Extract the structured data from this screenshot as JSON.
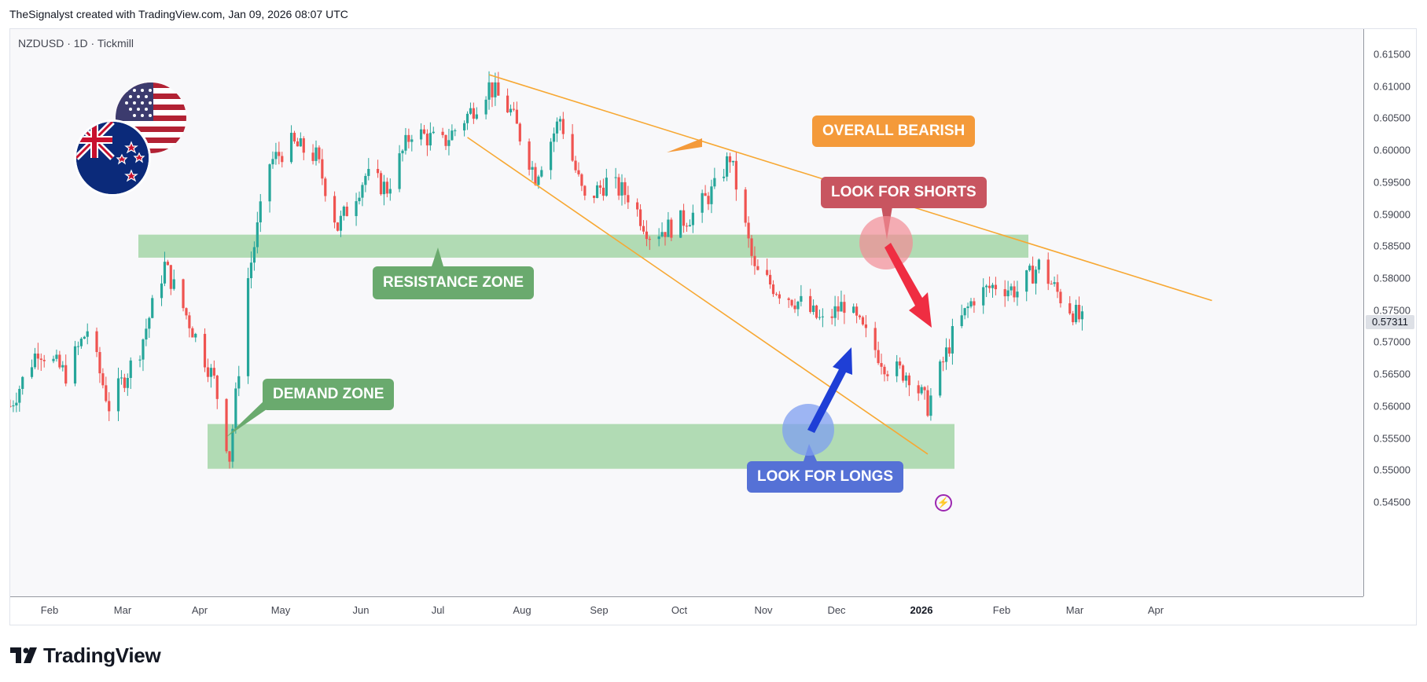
{
  "header": {
    "caption": "TheSignalyst created with TradingView.com, Jan 09, 2026 08:07 UTC"
  },
  "chart": {
    "symbol_info": "NZDUSD · 1D · Tickmill"
  },
  "y_axis": {
    "ticks": [
      "0.61500",
      "0.61000",
      "0.60500",
      "0.60000",
      "0.59500",
      "0.59000",
      "0.58500",
      "0.58000",
      "0.57500",
      "0.57000",
      "0.56500",
      "0.56000",
      "0.55500",
      "0.55000",
      "0.54500"
    ],
    "current_price": "0.57311"
  },
  "x_axis": {
    "ticks": [
      "Feb",
      "Mar",
      "Apr",
      "May",
      "Jun",
      "Jul",
      "Aug",
      "Sep",
      "Oct",
      "Nov",
      "Dec",
      "2026",
      "Feb",
      "Mar",
      "Apr"
    ]
  },
  "annotations": {
    "overall_bearish": "OVERALL BEARISH",
    "look_for_shorts": "LOOK FOR SHORTS",
    "resistance_zone": "RESISTANCE ZONE",
    "demand_zone": "DEMAND ZONE",
    "look_for_longs": "LOOK FOR LONGS"
  },
  "footer": {
    "brand": "TradingView"
  },
  "flags": [
    "united-states-flag",
    "new-zealand-flag"
  ],
  "colors": {
    "up": "#26a69a",
    "down": "#ef5350",
    "resistance": "#a5d6a7",
    "trendline": "#f7a833",
    "bearish_box": "#f49a3a",
    "shorts_box": "#c85560",
    "zone_label": "#6aaa6e",
    "longs_box": "#5571d6"
  },
  "chart_data": {
    "type": "candlestick",
    "title": "NZDUSD · 1D · Tickmill",
    "x_range": [
      "2025-01-27",
      "2026-04-10"
    ],
    "ylim": [
      0.542,
      0.618
    ],
    "key_levels": [
      {
        "name": "RESISTANCE ZONE",
        "from": 0.5832,
        "to": 0.5868
      },
      {
        "name": "DEMAND ZONE",
        "from": 0.5502,
        "to": 0.5572
      }
    ],
    "trendlines": [
      {
        "from": [
          "2025-07-01",
          0.6118
        ],
        "to": [
          "2026-02-20",
          0.5765
        ]
      },
      {
        "from": [
          "2025-06-24",
          0.602
        ],
        "to": [
          "2025-11-20",
          0.5525
        ]
      }
    ],
    "series": [
      {
        "points": [
          [
            "2025-01-27",
            0.56
          ],
          [
            "2025-02-05",
            0.569
          ],
          [
            "2025-02-14",
            0.565
          ],
          [
            "2025-02-21",
            0.572
          ],
          [
            "2025-02-28",
            0.56
          ],
          [
            "2025-03-10",
            0.569
          ],
          [
            "2025-03-18",
            0.582
          ],
          [
            "2025-03-27",
            0.572
          ],
          [
            "2025-04-03",
            0.564
          ],
          [
            "2025-04-08",
            0.552
          ],
          [
            "2025-04-14",
            0.58
          ],
          [
            "2025-04-21",
            0.598
          ],
          [
            "2025-04-28",
            0.601
          ],
          [
            "2025-05-06",
            0.599
          ],
          [
            "2025-05-13",
            0.588
          ],
          [
            "2025-05-22",
            0.596
          ],
          [
            "2025-05-29",
            0.594
          ],
          [
            "2025-06-06",
            0.603
          ],
          [
            "2025-06-16",
            0.601
          ],
          [
            "2025-06-25",
            0.606
          ],
          [
            "2025-07-01",
            0.61
          ],
          [
            "2025-07-08",
            0.606
          ],
          [
            "2025-07-16",
            0.596
          ],
          [
            "2025-07-24",
            0.605
          ],
          [
            "2025-08-01",
            0.592
          ],
          [
            "2025-08-08",
            0.595
          ],
          [
            "2025-08-15",
            0.593
          ],
          [
            "2025-08-22",
            0.587
          ],
          [
            "2025-08-29",
            0.588
          ],
          [
            "2025-09-05",
            0.59
          ],
          [
            "2025-09-12",
            0.594
          ],
          [
            "2025-09-17",
            0.599
          ],
          [
            "2025-09-25",
            0.581
          ],
          [
            "2025-10-03",
            0.578
          ],
          [
            "2025-10-10",
            0.576
          ],
          [
            "2025-10-17",
            0.573
          ],
          [
            "2025-10-24",
            0.576
          ],
          [
            "2025-10-31",
            0.571
          ],
          [
            "2025-11-07",
            0.566
          ],
          [
            "2025-11-14",
            0.565
          ],
          [
            "2025-11-20",
            0.56
          ],
          [
            "2025-11-28",
            0.571
          ],
          [
            "2025-12-05",
            0.577
          ],
          [
            "2025-12-12",
            0.579
          ],
          [
            "2025-12-19",
            0.578
          ],
          [
            "2025-12-26",
            0.582
          ],
          [
            "2026-01-02",
            0.577
          ],
          [
            "2026-01-09",
            0.5731
          ]
        ]
      }
    ]
  }
}
